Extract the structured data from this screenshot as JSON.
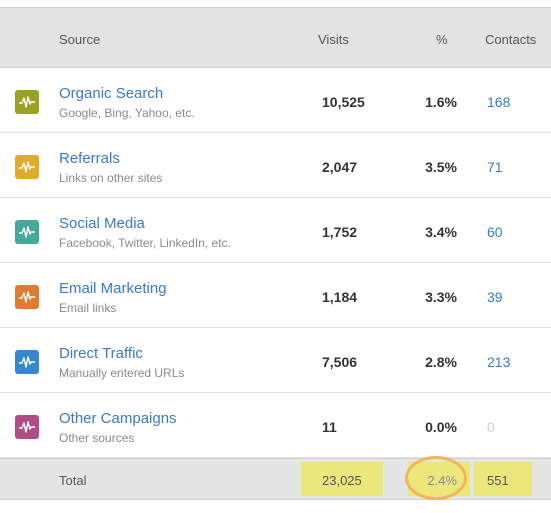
{
  "header": {
    "source": "Source",
    "visits": "Visits",
    "percent": "%",
    "contacts": "Contacts"
  },
  "rows": [
    {
      "name": "Organic Search",
      "description": "Google, Bing, Yahoo, etc.",
      "visits": "10,525",
      "percent": "1.6%",
      "contacts": "168",
      "icon": "activity-icon",
      "color": "#9aa124"
    },
    {
      "name": "Referrals",
      "description": "Links on other sites",
      "visits": "2,047",
      "percent": "3.5%",
      "contacts": "71",
      "icon": "activity-icon",
      "color": "#e0aa2b"
    },
    {
      "name": "Social Media",
      "description": "Facebook, Twitter, LinkedIn, etc.",
      "visits": "1,752",
      "percent": "3.4%",
      "contacts": "60",
      "icon": "activity-icon",
      "color": "#45a99a"
    },
    {
      "name": "Email Marketing",
      "description": "Email links",
      "visits": "1,184",
      "percent": "3.3%",
      "contacts": "39",
      "icon": "activity-icon",
      "color": "#e07b33"
    },
    {
      "name": "Direct Traffic",
      "description": "Manually entered URLs",
      "visits": "7,506",
      "percent": "2.8%",
      "contacts": "213",
      "icon": "activity-icon",
      "color": "#3787cf"
    },
    {
      "name": "Other Campaigns",
      "description": "Other sources",
      "visits": "11",
      "percent": "0.0%",
      "contacts": "0",
      "icon": "activity-icon",
      "color": "#b04d86"
    }
  ],
  "total": {
    "label": "Total",
    "visits": "23,025",
    "percent": "2.4%",
    "contacts": "551"
  },
  "colors": {
    "link": "#3a7ac9",
    "highlight": "#ece77b",
    "circle": "#f2b55a"
  }
}
